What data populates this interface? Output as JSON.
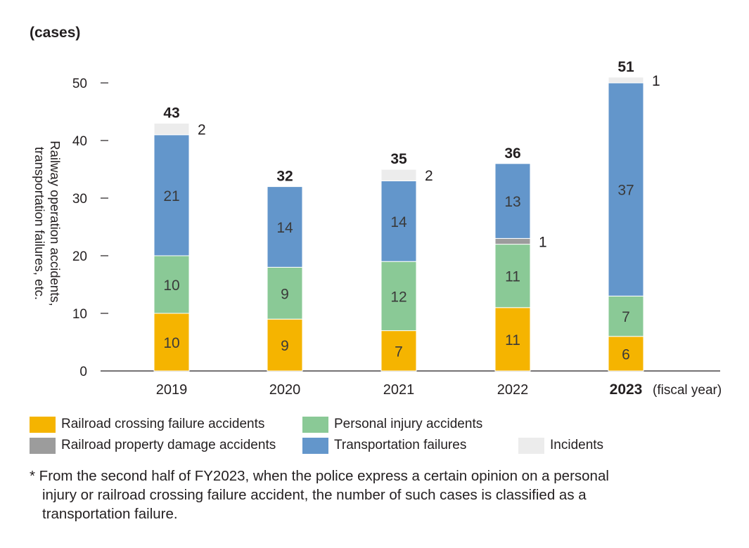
{
  "chart_data": {
    "type": "bar",
    "stacked": true,
    "y_unit_label": "(cases)",
    "ylabel": "Railway operation accidents, transportation failures, etc.",
    "ylim": [
      0,
      50
    ],
    "yticks": [
      0,
      10,
      20,
      30,
      40,
      50
    ],
    "categories": [
      "2019",
      "2020",
      "2021",
      "2022",
      "2023"
    ],
    "highlight_category": "2023",
    "x_suffix_label": "(fiscal year)",
    "totals": [
      43,
      32,
      35,
      36,
      51
    ],
    "series": [
      {
        "name": "Railroad crossing failure accidents",
        "color": "#f5b400",
        "values": [
          10,
          9,
          7,
          11,
          6
        ]
      },
      {
        "name": "Personal injury accidents",
        "color": "#8ac996",
        "values": [
          10,
          9,
          12,
          11,
          7
        ]
      },
      {
        "name": "Railroad property damage accidents",
        "color": "#9c9c9c",
        "values": [
          0,
          0,
          0,
          1,
          0
        ]
      },
      {
        "name": "Transportation failures",
        "color": "#6396cb",
        "values": [
          21,
          14,
          14,
          13,
          37
        ]
      },
      {
        "name": "Incidents",
        "color": "#ececec",
        "values": [
          2,
          0,
          2,
          0,
          1
        ]
      }
    ],
    "grid": false,
    "legend_placement": "bottom"
  },
  "legend_order": [
    0,
    1,
    2,
    3,
    4
  ],
  "footnote": {
    "line1": "* From the second half of FY2023, when the police express a certain opinion on a personal",
    "line2": "injury or railroad crossing failure accident, the number of such cases is classified as a",
    "line3": "transportation failure."
  }
}
